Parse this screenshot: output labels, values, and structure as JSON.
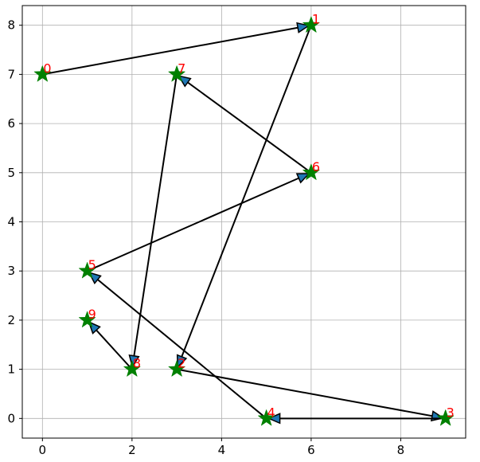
{
  "chart_data": {
    "type": "scatter",
    "title": "",
    "xlabel": "",
    "ylabel": "",
    "xlim": [
      -0.45,
      9.45
    ],
    "ylim": [
      -0.4,
      8.4
    ],
    "x_ticks": [
      0,
      2,
      4,
      6,
      8
    ],
    "y_ticks": [
      0,
      1,
      2,
      3,
      4,
      5,
      6,
      7,
      8
    ],
    "grid": true,
    "points": [
      {
        "label": "0",
        "x": 0,
        "y": 7
      },
      {
        "label": "1",
        "x": 6,
        "y": 8
      },
      {
        "label": "2",
        "x": 3,
        "y": 1
      },
      {
        "label": "3",
        "x": 9,
        "y": 0
      },
      {
        "label": "4",
        "x": 5,
        "y": 0
      },
      {
        "label": "5",
        "x": 1,
        "y": 3
      },
      {
        "label": "6",
        "x": 6,
        "y": 5
      },
      {
        "label": "7",
        "x": 3,
        "y": 7
      },
      {
        "label": "8",
        "x": 2,
        "y": 1
      },
      {
        "label": "9",
        "x": 1,
        "y": 2
      }
    ],
    "path_order": [
      0,
      1,
      2,
      3,
      4,
      5,
      6,
      7,
      8,
      9
    ],
    "colors": {
      "marker": "#008000",
      "label": "#ff0000",
      "arrow_line": "#000000",
      "arrow_head": "#1f77b4",
      "grid": "#b0b0b0"
    }
  }
}
